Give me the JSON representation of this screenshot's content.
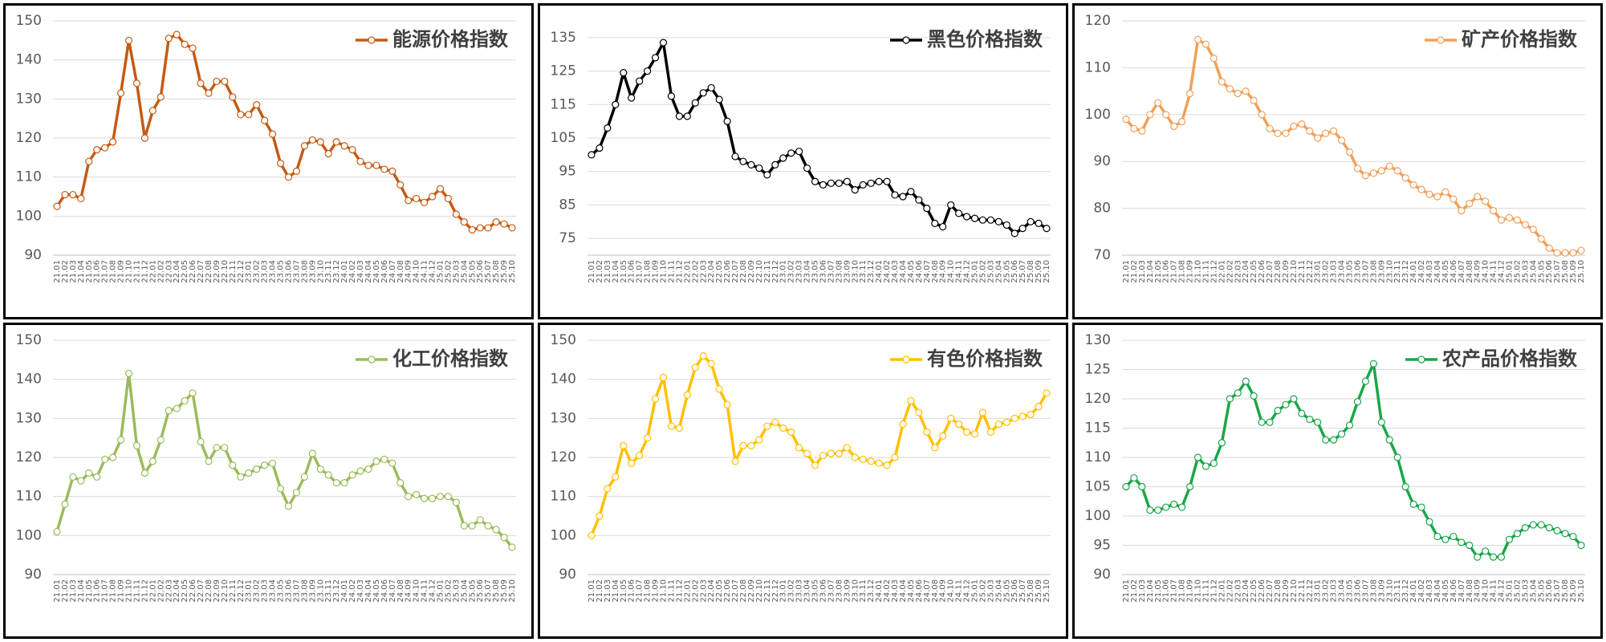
{
  "chart_data": [
    {
      "type": "line",
      "categories": [
        "21.01",
        "21.02",
        "21.03",
        "21.04",
        "21.05",
        "21.06",
        "21.07",
        "21.08",
        "21.09",
        "21.10",
        "21.11",
        "21.12",
        "22.01",
        "22.02",
        "22.03",
        "22.04",
        "22.05",
        "22.06",
        "22.07",
        "22.08",
        "22.09",
        "22.10",
        "22.11",
        "22.12",
        "23.01",
        "23.02",
        "23.03",
        "23.04",
        "23.05",
        "23.06",
        "23.07",
        "23.08",
        "23.09",
        "23.10",
        "23.11",
        "23.12",
        "24.01",
        "24.02",
        "24.03",
        "24.04",
        "24.05",
        "24.06",
        "24.07",
        "24.08",
        "24.09",
        "24.10",
        "24.11",
        "24.12",
        "25.01",
        "25.02",
        "25.03",
        "25.04",
        "25.05",
        "25.06",
        "25.07",
        "25.08",
        "25.09",
        "25.10"
      ],
      "series": [
        {
          "name": "能源价格指数",
          "color": "#c55a11",
          "values": [
            102.5,
            105.5,
            105.5,
            104.5,
            114,
            117,
            117.5,
            119,
            131.5,
            145,
            134,
            120,
            127,
            130.5,
            145.5,
            146.5,
            144,
            143,
            134,
            131.5,
            134.5,
            134.5,
            130.5,
            126,
            126,
            128.5,
            124.5,
            121,
            113.5,
            110,
            111.5,
            118,
            119.5,
            119,
            116,
            119,
            118,
            117,
            114,
            113,
            113,
            112,
            111.5,
            108,
            104,
            104.5,
            103.5,
            105,
            107,
            104.5,
            100.5,
            98.5,
            96.5,
            97,
            97,
            98.5,
            98,
            97
          ]
        }
      ],
      "ylim": [
        90,
        150
      ],
      "yticks": [
        90,
        100,
        110,
        120,
        130,
        140,
        150
      ],
      "grid": true
    },
    {
      "type": "line",
      "categories": [
        "21.01",
        "21.02",
        "21.03",
        "21.04",
        "21.05",
        "21.06",
        "21.07",
        "21.08",
        "21.09",
        "21.10",
        "21.11",
        "21.12",
        "22.01",
        "22.02",
        "22.03",
        "22.04",
        "22.05",
        "22.06",
        "22.07",
        "22.08",
        "22.09",
        "22.10",
        "22.11",
        "22.12",
        "23.01",
        "23.02",
        "23.03",
        "23.04",
        "23.05",
        "23.06",
        "23.07",
        "23.08",
        "23.09",
        "23.10",
        "23.11",
        "23.12",
        "24.01",
        "24.02",
        "24.03",
        "24.04",
        "24.05",
        "24.06",
        "24.07",
        "24.08",
        "24.09",
        "24.10",
        "24.11",
        "24.12",
        "25.01",
        "25.02",
        "25.03",
        "25.04",
        "25.05",
        "25.06",
        "25.07",
        "25.08",
        "25.09",
        "25.10"
      ],
      "series": [
        {
          "name": "黑色价格指数",
          "color": "#000000",
          "values": [
            100,
            102,
            108,
            115,
            124.5,
            117,
            122,
            125,
            129,
            133.5,
            117.5,
            111.5,
            111.5,
            115.5,
            118.5,
            120,
            116.5,
            110,
            99.5,
            98,
            97,
            96,
            94,
            97,
            99,
            100.5,
            101,
            96,
            92,
            91,
            91.5,
            91.5,
            92,
            89.5,
            91,
            91.5,
            92,
            92,
            88,
            87.5,
            89,
            86.5,
            84,
            79.5,
            78.5,
            85,
            82.5,
            81.5,
            81,
            80.5,
            80.5,
            80,
            79,
            76.5,
            78,
            80,
            79.5,
            78
          ]
        }
      ],
      "ylim": [
        70,
        140
      ],
      "yticks": [
        75,
        85,
        95,
        105,
        115,
        125,
        135
      ],
      "grid": true
    },
    {
      "type": "line",
      "categories": [
        "21.01",
        "21.02",
        "21.03",
        "21.04",
        "21.05",
        "21.06",
        "21.07",
        "21.08",
        "21.09",
        "21.10",
        "21.11",
        "21.12",
        "22.01",
        "22.02",
        "22.03",
        "22.04",
        "22.05",
        "22.06",
        "22.07",
        "22.08",
        "22.09",
        "22.10",
        "22.11",
        "22.12",
        "23.01",
        "23.02",
        "23.03",
        "23.04",
        "23.05",
        "23.06",
        "23.07",
        "23.08",
        "23.09",
        "23.10",
        "23.11",
        "23.12",
        "24.01",
        "24.02",
        "24.03",
        "24.04",
        "24.05",
        "24.06",
        "24.07",
        "24.08",
        "24.09",
        "24.10",
        "24.11",
        "24.12",
        "25.01",
        "25.02",
        "25.03",
        "25.04",
        "25.05",
        "25.06",
        "25.07",
        "25.08",
        "25.09",
        "25.10"
      ],
      "series": [
        {
          "name": "矿产价格指数",
          "color": "#f0a05a",
          "values": [
            99,
            97,
            96.5,
            100,
            102.5,
            100,
            97.5,
            98.5,
            104.5,
            116,
            115,
            112,
            107,
            105.5,
            104.5,
            105,
            103,
            100,
            97,
            96,
            96,
            97.5,
            98,
            96.5,
            95,
            96,
            96.5,
            94.5,
            92,
            88.5,
            87,
            87.5,
            88,
            89,
            88,
            86.5,
            85,
            84,
            83,
            82.5,
            83.5,
            82,
            79.5,
            81,
            82.5,
            81.5,
            79.5,
            77.5,
            78,
            77.5,
            76.5,
            75.5,
            73.5,
            71.5,
            70.5,
            70.5,
            70.5,
            71
          ]
        }
      ],
      "ylim": [
        70,
        120
      ],
      "yticks": [
        70,
        80,
        90,
        100,
        110,
        120
      ],
      "grid": true
    },
    {
      "type": "line",
      "categories": [
        "21.01",
        "21.02",
        "21.03",
        "21.04",
        "21.05",
        "21.06",
        "21.07",
        "21.08",
        "21.09",
        "21.10",
        "21.11",
        "21.12",
        "22.01",
        "22.02",
        "22.03",
        "22.04",
        "22.05",
        "22.06",
        "22.07",
        "22.08",
        "22.09",
        "22.10",
        "22.11",
        "22.12",
        "23.01",
        "23.02",
        "23.03",
        "23.04",
        "23.05",
        "23.06",
        "23.07",
        "23.08",
        "23.09",
        "23.10",
        "23.11",
        "23.12",
        "24.01",
        "24.02",
        "24.03",
        "24.04",
        "24.05",
        "24.06",
        "24.07",
        "24.08",
        "24.09",
        "24.10",
        "24.11",
        "24.12",
        "25.01",
        "25.02",
        "25.03",
        "25.04",
        "25.05",
        "25.06",
        "25.07",
        "25.08",
        "25.09",
        "25.10"
      ],
      "series": [
        {
          "name": "化工价格指数",
          "color": "#9bbb59",
          "values": [
            101,
            108,
            115,
            114,
            116,
            115,
            119.5,
            120,
            124.5,
            141.5,
            123,
            116,
            119,
            124.5,
            132,
            132.5,
            134.5,
            136.5,
            124,
            119,
            122.5,
            122.5,
            118,
            115,
            116,
            117,
            118,
            118.5,
            112,
            107.5,
            111,
            115,
            121,
            117,
            115.5,
            113.5,
            113.5,
            115.5,
            116.5,
            117,
            119,
            119.5,
            118.5,
            113.5,
            110,
            110.5,
            109.5,
            109.5,
            110,
            110,
            108.5,
            102.5,
            102.5,
            104,
            102.5,
            101.5,
            99.5,
            97
          ]
        }
      ],
      "ylim": [
        90,
        150
      ],
      "yticks": [
        90,
        100,
        110,
        120,
        130,
        140,
        150
      ],
      "grid": true
    },
    {
      "type": "line",
      "categories": [
        "21.01",
        "21.02",
        "21.03",
        "21.04",
        "21.05",
        "21.06",
        "21.07",
        "21.08",
        "21.09",
        "21.10",
        "21.11",
        "21.12",
        "22.01",
        "22.02",
        "22.03",
        "22.04",
        "22.05",
        "22.06",
        "22.07",
        "22.08",
        "22.09",
        "22.10",
        "22.11",
        "22.12",
        "23.01",
        "23.02",
        "23.03",
        "23.04",
        "23.05",
        "23.06",
        "23.07",
        "23.08",
        "23.09",
        "23.10",
        "23.11",
        "23.12",
        "24.01",
        "24.02",
        "24.03",
        "24.04",
        "24.05",
        "24.06",
        "24.07",
        "24.08",
        "24.09",
        "24.10",
        "24.11",
        "24.12",
        "25.01",
        "25.02",
        "25.03",
        "25.04",
        "25.05",
        "25.06",
        "25.07",
        "25.08",
        "25.09",
        "25.10"
      ],
      "series": [
        {
          "name": "有色价格指数",
          "color": "#ffc000",
          "values": [
            100,
            105,
            112,
            115,
            123,
            118.5,
            120.5,
            125,
            135,
            140.5,
            128,
            127.5,
            136,
            143,
            146,
            144,
            137.5,
            133.5,
            119,
            123,
            123,
            124.5,
            128,
            129,
            127.5,
            126.5,
            122.5,
            121,
            118,
            120.5,
            121,
            121,
            122.5,
            120,
            119.5,
            119,
            118.5,
            118,
            120,
            128.5,
            134.5,
            131.5,
            126.5,
            122.5,
            125.5,
            130,
            128.5,
            126.5,
            126,
            131.5,
            126.5,
            128.5,
            129,
            130,
            130.5,
            131,
            133,
            136.5
          ]
        }
      ],
      "ylim": [
        90,
        150
      ],
      "yticks": [
        90,
        100,
        110,
        120,
        130,
        140,
        150
      ],
      "grid": true
    },
    {
      "type": "line",
      "categories": [
        "21.01",
        "21.02",
        "21.03",
        "21.04",
        "21.05",
        "21.06",
        "21.07",
        "21.08",
        "21.09",
        "21.10",
        "21.11",
        "21.12",
        "22.01",
        "22.02",
        "22.03",
        "22.04",
        "22.05",
        "22.06",
        "22.07",
        "22.08",
        "22.09",
        "22.10",
        "22.11",
        "22.12",
        "23.01",
        "23.02",
        "23.03",
        "23.04",
        "23.05",
        "23.06",
        "23.07",
        "23.08",
        "23.09",
        "23.10",
        "23.11",
        "23.12",
        "24.01",
        "24.02",
        "24.03",
        "24.04",
        "24.05",
        "24.06",
        "24.07",
        "24.08",
        "24.09",
        "24.10",
        "24.11",
        "24.12",
        "25.01",
        "25.02",
        "25.03",
        "25.04",
        "25.05",
        "25.06",
        "25.07",
        "25.08",
        "25.09",
        "25.10"
      ],
      "series": [
        {
          "name": "农产品价格指数",
          "color": "#1aa64a",
          "values": [
            105,
            106.5,
            105,
            101,
            101,
            101.5,
            102,
            101.5,
            105,
            110,
            108.5,
            109,
            112.5,
            120,
            121,
            123,
            120.5,
            116,
            116,
            118,
            119,
            120,
            117.5,
            116.5,
            116,
            113,
            113,
            114,
            115.5,
            119.5,
            123,
            126,
            116,
            113,
            110,
            105,
            102,
            101.5,
            99,
            96.5,
            96,
            96.5,
            95.5,
            95,
            93,
            94,
            93,
            93,
            96,
            97,
            98,
            98.5,
            98.5,
            98,
            97.5,
            97,
            96.5,
            95
          ]
        }
      ],
      "ylim": [
        90,
        130
      ],
      "yticks": [
        90,
        95,
        100,
        105,
        110,
        115,
        120,
        125,
        130
      ],
      "grid": true
    }
  ]
}
